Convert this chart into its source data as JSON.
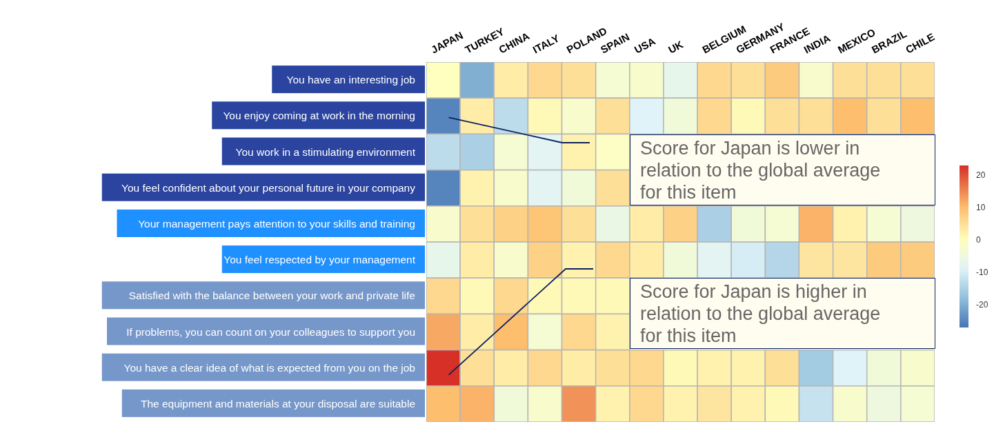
{
  "chart_data": {
    "type": "heatmap",
    "categories": [
      "JAPAN",
      "TURKEY",
      "CHINA",
      "ITALY",
      "POLAND",
      "SPAIN",
      "USA",
      "UK",
      "BELGIUM",
      "GERMANY",
      "FRANCE",
      "INDIA",
      "MEXICO",
      "BRAZIL",
      "CHILE"
    ],
    "y_categories": [
      "You have an interesting job",
      "You enjoy coming at work in the morning",
      "You work in a stimulating environment",
      "You feel confident about your personal future in your company",
      "Your management pays attention to your skills and training",
      "You feel respected by your management",
      "Satisfied with the balance between your work and private life",
      "If problems, you can count on your colleagues to support you",
      "You have a clear idea of what is expected from you on the job",
      "The equipment and materials at your disposal are suitable"
    ],
    "cells": [
      [
        0,
        -20,
        3,
        6,
        5,
        -3,
        -2,
        -7,
        6,
        5,
        8,
        -2,
        5,
        5,
        5
      ],
      [
        -25,
        3,
        -13,
        1,
        -2,
        5,
        -9,
        -4,
        6,
        1,
        5,
        5,
        10,
        5,
        10
      ],
      [
        -13,
        -15,
        -3,
        -8,
        2,
        -1,
        null,
        null,
        null,
        null,
        null,
        null,
        null,
        null,
        null
      ],
      [
        -25,
        2,
        -2,
        -8,
        -4,
        5,
        null,
        null,
        null,
        null,
        null,
        null,
        null,
        null,
        null
      ],
      [
        -2,
        5,
        7,
        9,
        5,
        -6,
        3,
        7,
        -15,
        -4,
        -3,
        11,
        2,
        -3,
        -5
      ],
      [
        -7,
        3,
        -2,
        7,
        2,
        6,
        3,
        -4,
        -8,
        -10,
        -14,
        4,
        4,
        8,
        8
      ],
      [
        6,
        1,
        6,
        1,
        1,
        1,
        null,
        null,
        null,
        null,
        null,
        null,
        null,
        null,
        null
      ],
      [
        12,
        3,
        10,
        -3,
        6,
        2,
        null,
        null,
        null,
        null,
        null,
        null,
        null,
        null,
        null
      ],
      [
        23,
        5,
        3,
        6,
        3,
        5,
        6,
        1,
        2,
        2,
        5,
        -16,
        -9,
        -4,
        -2
      ],
      [
        10,
        11,
        -4,
        -2,
        14,
        2,
        6,
        2,
        4,
        2,
        1,
        -12,
        -2,
        -5,
        -3
      ]
    ],
    "clim": [
      -27,
      23
    ],
    "cticks": [
      20,
      10,
      0,
      -10,
      -20
    ],
    "annotations": [
      "Score for Japan is lower in relation to the global average for this item",
      "Score for Japan is higher in relation to the global average for this item"
    ]
  }
}
